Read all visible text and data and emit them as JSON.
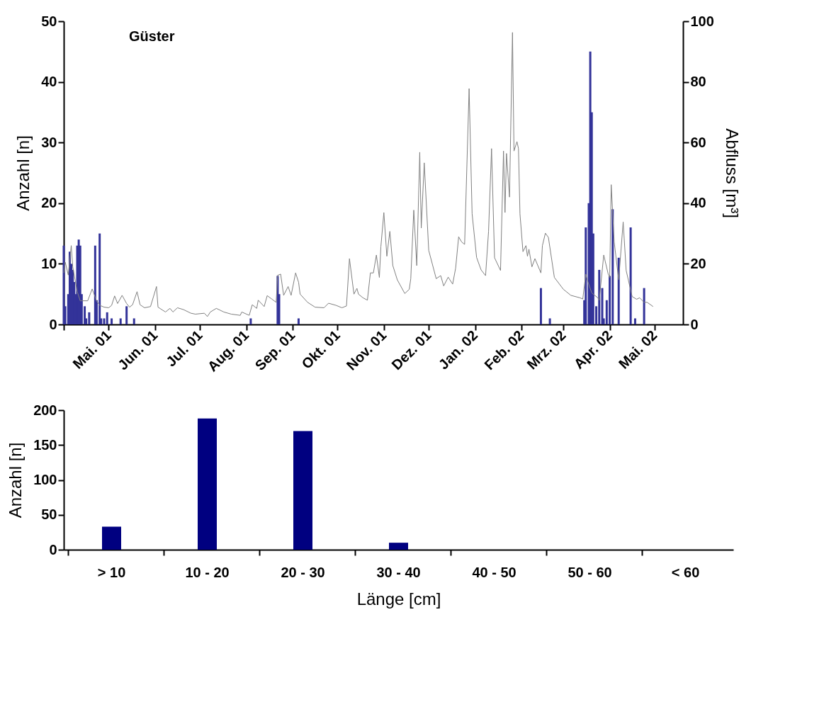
{
  "chart_data": [
    {
      "type": "bar",
      "title": "Güster",
      "ylabel": "Anzahl [n]",
      "y2label": "Abfluss [m³]",
      "xlim": [
        "2001-04-01",
        "2002-05-20"
      ],
      "xticks": [
        {
          "value": "2001-04-01",
          "label": null
        },
        {
          "value": "2001-05-01",
          "label": "Mai. 01"
        },
        {
          "value": "2001-06-01",
          "label": "Jun. 01"
        },
        {
          "value": "2001-07-01",
          "label": "Jul. 01"
        },
        {
          "value": "2001-08-01",
          "label": "Aug. 01"
        },
        {
          "value": "2001-09-01",
          "label": "Sep. 01"
        },
        {
          "value": "2001-10-01",
          "label": "Okt. 01"
        },
        {
          "value": "2001-11-01",
          "label": "Nov. 01"
        },
        {
          "value": "2001-12-01",
          "label": "Dez. 01"
        },
        {
          "value": "2002-01-01",
          "label": "Jan. 02"
        },
        {
          "value": "2002-02-01",
          "label": "Feb. 02"
        },
        {
          "value": "2002-03-01",
          "label": "Mrz. 02"
        },
        {
          "value": "2002-04-01",
          "label": "Apr. 02"
        },
        {
          "value": "2002-05-01",
          "label": "Mai. 02"
        }
      ],
      "ylim": [
        0,
        50
      ],
      "yticks": [
        0,
        10,
        20,
        30,
        40,
        50
      ],
      "y2lim": [
        0,
        100
      ],
      "y2ticks": [
        0,
        20,
        40,
        60,
        80,
        100
      ],
      "series": [
        {
          "type": "bar",
          "color": "#333399",
          "x": [
            "2001-04-01",
            "2001-04-02",
            "2001-04-04",
            "2001-04-05",
            "2001-04-06",
            "2001-04-07",
            "2001-04-08",
            "2001-04-09",
            "2001-04-10",
            "2001-04-11",
            "2001-04-12",
            "2001-04-13",
            "2001-04-15",
            "2001-04-16",
            "2001-04-18",
            "2001-04-22",
            "2001-04-23",
            "2001-04-25",
            "2001-04-26",
            "2001-04-28",
            "2001-04-30",
            "2001-05-03",
            "2001-05-09",
            "2001-05-13",
            "2001-05-18",
            "2001-08-04",
            "2001-08-22",
            "2001-08-23",
            "2001-09-05",
            "2002-02-14",
            "2002-02-20",
            "2002-03-15",
            "2002-03-16",
            "2002-03-18",
            "2002-03-19",
            "2002-03-20",
            "2002-03-21",
            "2002-03-23",
            "2002-03-25",
            "2002-03-27",
            "2002-03-28",
            "2002-03-30",
            "2002-04-01",
            "2002-04-03",
            "2002-04-07",
            "2002-04-15",
            "2002-04-18",
            "2002-04-24"
          ],
          "values": [
            13,
            3,
            5,
            12,
            10,
            9,
            7,
            5,
            13,
            14,
            13,
            5,
            3,
            1,
            2,
            13,
            4,
            15,
            1,
            1,
            2,
            1,
            1,
            3,
            1,
            1,
            8,
            5,
            1,
            6,
            1,
            4,
            16,
            20,
            45,
            35,
            15,
            3,
            9,
            6,
            1,
            4,
            8,
            19,
            11,
            16,
            1,
            6
          ]
        },
        {
          "type": "line",
          "axis": "y2",
          "color": "#808080",
          "x": [
            "2001-04-01",
            "2001-04-02",
            "2001-04-04",
            "2001-04-06",
            "2001-04-07",
            "2001-04-10",
            "2001-04-12",
            "2001-04-17",
            "2001-04-19",
            "2001-04-20",
            "2001-04-23",
            "2001-04-25",
            "2001-04-28",
            "2001-05-01",
            "2001-05-03",
            "2001-05-05",
            "2001-05-07",
            "2001-05-10",
            "2001-05-13",
            "2001-05-15",
            "2001-05-17",
            "2001-05-20",
            "2001-05-22",
            "2001-05-25",
            "2001-05-29",
            "2001-06-02",
            "2001-06-03",
            "2001-06-08",
            "2001-06-11",
            "2001-06-13",
            "2001-06-16",
            "2001-06-20",
            "2001-06-25",
            "2001-06-28",
            "2001-07-04",
            "2001-07-06",
            "2001-07-08",
            "2001-07-12",
            "2001-07-17",
            "2001-07-22",
            "2001-07-28",
            "2001-07-29",
            "2001-08-03",
            "2001-08-05",
            "2001-08-08",
            "2001-08-09",
            "2001-08-13",
            "2001-08-15",
            "2001-08-18",
            "2001-08-21",
            "2001-08-22",
            "2001-08-24",
            "2001-08-26",
            "2001-08-29",
            "2001-08-31",
            "2001-09-03",
            "2001-09-05",
            "2001-09-06",
            "2001-09-11",
            "2001-09-16",
            "2001-09-22",
            "2001-09-25",
            "2001-09-30",
            "2001-10-04",
            "2001-10-07",
            "2001-10-09",
            "2001-10-12",
            "2001-10-14",
            "2001-10-15",
            "2001-10-18",
            "2001-10-21",
            "2001-10-23",
            "2001-10-25",
            "2001-10-27",
            "2001-10-29",
            "2001-10-30",
            "2001-11-01",
            "2001-11-03",
            "2001-11-05",
            "2001-11-07",
            "2001-11-10",
            "2001-11-15",
            "2001-11-18",
            "2001-11-19",
            "2001-11-21",
            "2001-11-23",
            "2001-11-25",
            "2001-11-26",
            "2001-11-28",
            "2001-12-01",
            "2001-12-06",
            "2001-12-09",
            "2001-12-11",
            "2001-12-14",
            "2001-12-17",
            "2001-12-19",
            "2001-12-21",
            "2001-12-23",
            "2001-12-25",
            "2001-12-28",
            "2001-12-30",
            "2002-01-02",
            "2002-01-05",
            "2002-01-08",
            "2002-01-10",
            "2002-01-12",
            "2002-01-14",
            "2002-01-18",
            "2002-01-20",
            "2002-01-21",
            "2002-01-22",
            "2002-01-24",
            "2002-01-26",
            "2002-01-27",
            "2002-01-29",
            "2002-01-30",
            "2002-01-31",
            "2002-02-02",
            "2002-02-04",
            "2002-02-05",
            "2002-02-06",
            "2002-02-08",
            "2002-02-10",
            "2002-02-14",
            "2002-02-15",
            "2002-02-17",
            "2002-02-19",
            "2002-02-23",
            "2002-03-01",
            "2002-03-06",
            "2002-03-12",
            "2002-03-14",
            "2002-03-16",
            "2002-03-17",
            "2002-03-20",
            "2002-03-24",
            "2002-03-25",
            "2002-03-28",
            "2002-03-31",
            "2002-04-01",
            "2002-04-02",
            "2002-04-04",
            "2002-04-07",
            "2002-04-10",
            "2002-04-12",
            "2002-04-16",
            "2002-04-19",
            "2002-04-21",
            "2002-04-24",
            "2002-04-26",
            "2002-04-30"
          ],
          "values": [
            17,
            20.5,
            16.3,
            26,
            19,
            10.8,
            7.8,
            7.8,
            10.4,
            11.7,
            7.7,
            6.3,
            5.7,
            5.5,
            6.3,
            9.4,
            6.9,
            9.6,
            6.9,
            5.7,
            6.5,
            10.8,
            6.5,
            5.5,
            5.9,
            12.5,
            5.7,
            4.1,
            5.3,
            4.1,
            5.5,
            4.9,
            3.7,
            3.4,
            3.7,
            2.6,
            4.1,
            5.3,
            4.1,
            3.4,
            3,
            4.1,
            3,
            6.5,
            5.3,
            8,
            5.9,
            9.5,
            8.4,
            7.3,
            16.2,
            16.6,
            9.6,
            12.5,
            9.6,
            17,
            13.9,
            10,
            7.3,
            5.7,
            5.5,
            7,
            6.3,
            5.5,
            6.1,
            21.7,
            10,
            11.9,
            10,
            8.8,
            8,
            17,
            17,
            22.9,
            15.5,
            25.6,
            36.9,
            22.5,
            30.7,
            19.4,
            14.7,
            10.2,
            11.6,
            15.1,
            37.7,
            19.4,
            56.8,
            31.8,
            53.3,
            24.4,
            15.1,
            16.1,
            12.7,
            15.6,
            13.3,
            18.6,
            28.9,
            27.2,
            26.4,
            77.8,
            36.5,
            22.1,
            18,
            16.1,
            30.7,
            58,
            22,
            17.8,
            57.2,
            36.9,
            56.4,
            42,
            96.3,
            57.2,
            60.3,
            58,
            36.5,
            24,
            26,
            22.5,
            24.8,
            19,
            21.7,
            17,
            26,
            30.1,
            28.7,
            15.5,
            11.6,
            9.6,
            8.8,
            8.4,
            16.6,
            14.7,
            10.4,
            8.8,
            8,
            22.9,
            16.6,
            15.5,
            46.1,
            27.2,
            14.7,
            33.8,
            17.8,
            9.2,
            8.3,
            8.8,
            7.3,
            7.3,
            5.9
          ]
        }
      ]
    },
    {
      "type": "bar",
      "xlabel": "Länge [cm]",
      "ylabel": "Anzahl [n]",
      "color": "#000080",
      "categories": [
        "> 10",
        "10 - 20",
        "20 - 30",
        "30 - 40",
        "40 - 50",
        "50 - 60",
        "< 60"
      ],
      "values": [
        33,
        188,
        170,
        10,
        0,
        0,
        0
      ],
      "ylim": [
        0,
        200
      ],
      "yticks": [
        0,
        50,
        100,
        150,
        200
      ]
    }
  ]
}
